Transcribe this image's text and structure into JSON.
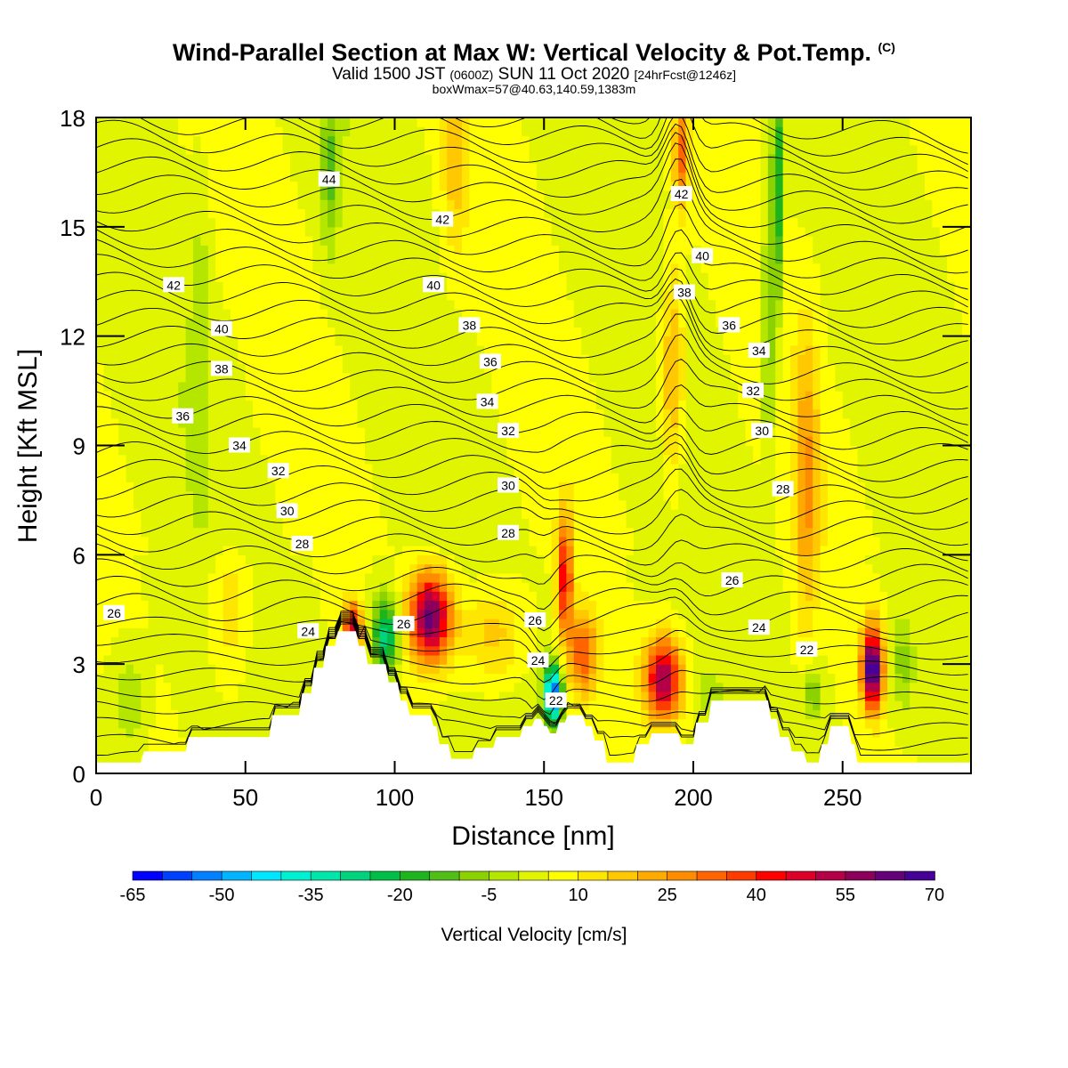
{
  "title_main": "Wind-Parallel Section at Max W: Vertical Velocity & Pot.Temp.",
  "title_mark": "(C)",
  "subtitle_a": "Valid 1500 JST",
  "subtitle_b": "(0600Z)",
  "subtitle_c": "SUN 11 Oct 2020",
  "subtitle_d": "[24hrFcst@1246z]",
  "box_info": "boxWmax=57@40.63,140.59,1383m",
  "chart_data": {
    "type": "heatmap",
    "xlabel": "Distance [nm]",
    "ylabel": "Height [Kft MSL]",
    "xlim": [
      0,
      293
    ],
    "ylim": [
      0,
      18
    ],
    "x_ticks": [
      0,
      50,
      100,
      150,
      200,
      250
    ],
    "y_ticks": [
      0,
      3,
      6,
      9,
      12,
      15,
      18
    ],
    "colorbar": {
      "label": "Vertical Velocity [cm/s]",
      "range": [
        -65,
        70
      ],
      "step": 5,
      "tick_labels": [
        -65,
        -50,
        -35,
        -20,
        -5,
        10,
        25,
        40,
        55,
        70
      ],
      "colors": [
        "#0000ff",
        "#0041ff",
        "#0080ff",
        "#00b4ff",
        "#00e6ff",
        "#00f0d2",
        "#00e6aa",
        "#00d27d",
        "#00be46",
        "#1eb41e",
        "#50be14",
        "#8cd200",
        "#b4e600",
        "#e1f500",
        "#ffff00",
        "#ffe600",
        "#ffc800",
        "#ffaa00",
        "#ff8c00",
        "#ff6400",
        "#ff3c00",
        "#ff0000",
        "#dc0028",
        "#b40046",
        "#8c005a",
        "#640078",
        "#460096"
      ]
    },
    "terrain": [
      [
        0,
        0.3
      ],
      [
        15,
        0.3
      ],
      [
        16,
        0.6
      ],
      [
        30,
        0.6
      ],
      [
        31,
        1.0
      ],
      [
        58,
        1.0
      ],
      [
        59,
        1.6
      ],
      [
        68,
        1.6
      ],
      [
        69,
        2.2
      ],
      [
        72,
        2.2
      ],
      [
        73,
        2.9
      ],
      [
        76,
        2.9
      ],
      [
        77,
        3.5
      ],
      [
        80,
        3.5
      ],
      [
        81,
        3.9
      ],
      [
        87,
        3.9
      ],
      [
        88,
        3.5
      ],
      [
        90,
        3.5
      ],
      [
        91,
        3.0
      ],
      [
        97,
        3.0
      ],
      [
        98,
        2.5
      ],
      [
        101,
        2.5
      ],
      [
        102,
        2.0
      ],
      [
        104,
        2.0
      ],
      [
        105,
        1.6
      ],
      [
        112,
        1.6
      ],
      [
        113,
        1.3
      ],
      [
        114,
        1.3
      ],
      [
        115,
        0.8
      ],
      [
        118,
        0.8
      ],
      [
        119,
        0.4
      ],
      [
        126,
        0.4
      ],
      [
        127,
        0.7
      ],
      [
        133,
        0.7
      ],
      [
        134,
        1.0
      ],
      [
        142,
        1.0
      ],
      [
        143,
        1.3
      ],
      [
        146,
        1.3
      ],
      [
        147,
        1.5
      ],
      [
        149,
        1.5
      ],
      [
        150,
        1.3
      ],
      [
        151,
        1.3
      ],
      [
        152,
        1.1
      ],
      [
        154,
        1.1
      ],
      [
        155,
        1.4
      ],
      [
        157,
        1.4
      ],
      [
        158,
        1.6
      ],
      [
        163,
        1.6
      ],
      [
        164,
        1.3
      ],
      [
        166,
        1.3
      ],
      [
        167,
        0.9
      ],
      [
        170,
        0.9
      ],
      [
        171,
        0.3
      ],
      [
        180,
        0.3
      ],
      [
        181,
        0.8
      ],
      [
        185,
        0.8
      ],
      [
        186,
        1.1
      ],
      [
        195,
        1.1
      ],
      [
        196,
        0.8
      ],
      [
        200,
        0.8
      ],
      [
        201,
        1.4
      ],
      [
        205,
        1.4
      ],
      [
        206,
        2.0
      ],
      [
        225,
        2.0
      ],
      [
        226,
        1.5
      ],
      [
        228,
        1.5
      ],
      [
        229,
        1.0
      ],
      [
        232,
        1.0
      ],
      [
        233,
        0.6
      ],
      [
        237,
        0.6
      ],
      [
        238,
        0.3
      ],
      [
        242,
        0.3
      ],
      [
        243,
        0.8
      ],
      [
        245,
        0.8
      ],
      [
        246,
        1.3
      ],
      [
        252,
        1.3
      ],
      [
        253,
        0.8
      ],
      [
        254,
        0.8
      ],
      [
        255,
        0.3
      ],
      [
        293,
        0.3
      ]
    ],
    "isentrope_labels": [
      {
        "text": "44",
        "x": 78,
        "y": 16.3
      },
      {
        "text": "42",
        "x": 116,
        "y": 15.2
      },
      {
        "text": "42",
        "x": 196,
        "y": 15.9
      },
      {
        "text": "42",
        "x": 26,
        "y": 13.4
      },
      {
        "text": "40",
        "x": 113,
        "y": 13.4
      },
      {
        "text": "40",
        "x": 203,
        "y": 14.2
      },
      {
        "text": "38",
        "x": 197,
        "y": 13.2
      },
      {
        "text": "38",
        "x": 125,
        "y": 12.3
      },
      {
        "text": "36",
        "x": 212,
        "y": 12.3
      },
      {
        "text": "40",
        "x": 42,
        "y": 12.2
      },
      {
        "text": "34",
        "x": 222,
        "y": 11.6
      },
      {
        "text": "36",
        "x": 132,
        "y": 11.3
      },
      {
        "text": "38",
        "x": 42,
        "y": 11.1
      },
      {
        "text": "32",
        "x": 220,
        "y": 10.5
      },
      {
        "text": "34",
        "x": 131,
        "y": 10.2
      },
      {
        "text": "36",
        "x": 29,
        "y": 9.8
      },
      {
        "text": "32",
        "x": 138,
        "y": 9.4
      },
      {
        "text": "30",
        "x": 223,
        "y": 9.4
      },
      {
        "text": "34",
        "x": 48,
        "y": 9.0
      },
      {
        "text": "32",
        "x": 61,
        "y": 8.3
      },
      {
        "text": "28",
        "x": 230,
        "y": 7.8
      },
      {
        "text": "30",
        "x": 138,
        "y": 7.9
      },
      {
        "text": "30",
        "x": 64,
        "y": 7.2
      },
      {
        "text": "28",
        "x": 69,
        "y": 6.3
      },
      {
        "text": "28",
        "x": 138,
        "y": 6.6
      },
      {
        "text": "26",
        "x": 213,
        "y": 5.3
      },
      {
        "text": "26",
        "x": 6,
        "y": 4.4
      },
      {
        "text": "26",
        "x": 147,
        "y": 4.2
      },
      {
        "text": "26",
        "x": 103,
        "y": 4.1
      },
      {
        "text": "24",
        "x": 71,
        "y": 3.9
      },
      {
        "text": "24",
        "x": 222,
        "y": 4.0
      },
      {
        "text": "22",
        "x": 238,
        "y": 3.4
      },
      {
        "text": "24",
        "x": 148,
        "y": 3.1
      },
      {
        "text": "22",
        "x": 154,
        "y": 2.0
      }
    ]
  }
}
